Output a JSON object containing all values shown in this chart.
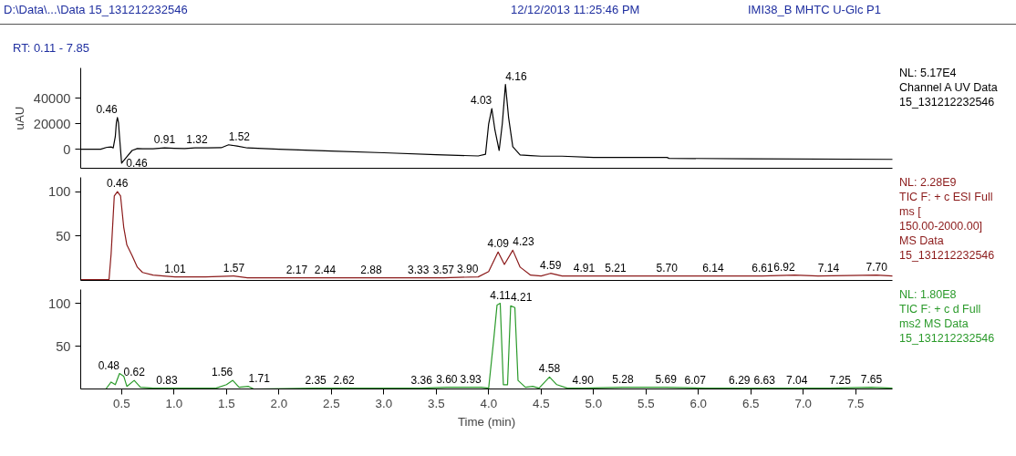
{
  "chart_data": [
    {
      "type": "line",
      "title": "D:\\Data\\...\\Data 15_131212232546",
      "subtitle": "RT: 0.11 - 7.85",
      "ylabel": "uAU",
      "tick_labels": "y",
      "grid": false,
      "xlim": [
        0.11,
        7.85
      ],
      "ylim": [
        -15000,
        64000
      ],
      "yticks": [
        0,
        20000,
        40000
      ],
      "series": [
        {
          "color": "#000000",
          "x": [
            0.11,
            0.3,
            0.36,
            0.4,
            0.42,
            0.44,
            0.45,
            0.46,
            0.47,
            0.48,
            0.5,
            0.55,
            0.6,
            0.65,
            0.7,
            0.8,
            0.91,
            1.0,
            1.1,
            1.2,
            1.32,
            1.45,
            1.52,
            1.6,
            1.7,
            2.0,
            2.5,
            3.0,
            3.5,
            3.9,
            3.97,
            4.0,
            4.03,
            4.06,
            4.1,
            4.13,
            4.16,
            4.19,
            4.23,
            4.3,
            4.4,
            4.5,
            4.7,
            5.0,
            5.7,
            5.72,
            6.5,
            7.85
          ],
          "values": [
            0,
            0,
            1500,
            1800,
            1000,
            10000,
            21000,
            25000,
            21000,
            10000,
            -11000,
            -6000,
            -1000,
            500,
            300,
            300,
            1000,
            700,
            500,
            1000,
            1000,
            1200,
            3500,
            2500,
            1000,
            0,
            -1500,
            -2800,
            -4300,
            -5300,
            -4000,
            20000,
            32000,
            15000,
            -1000,
            20000,
            51000,
            25000,
            2000,
            -4500,
            -5000,
            -5500,
            -5500,
            -6500,
            -6500,
            -7200,
            -7500,
            -8000
          ]
        }
      ],
      "annotations": [
        "12/12/2013 11:25:46 PM",
        "IMI38_B MHTC U-Glc P1",
        "NL: 5.17E4",
        "Channel A  UV Data",
        "15_131212232546",
        {
          "text": "0.46",
          "x": 0.46,
          "y": 25000
        },
        {
          "text": "0.46",
          "x": 0.5,
          "y": -11000
        },
        {
          "text": "0.91",
          "x": 0.91,
          "y": 1000
        },
        {
          "text": "1.32",
          "x": 1.32,
          "y": 1000
        },
        {
          "text": "1.52",
          "x": 1.52,
          "y": 3500
        },
        {
          "text": "4.03",
          "x": 4.03,
          "y": 32000
        },
        {
          "text": "4.16",
          "x": 4.16,
          "y": 51000
        }
      ]
    },
    {
      "type": "line",
      "tick_labels": "y",
      "grid": false,
      "xlim": [
        0.11,
        7.85
      ],
      "ylim": [
        0,
        116
      ],
      "yticks": [
        50,
        100
      ],
      "series": [
        {
          "color": "#8b1a1a",
          "x": [
            0.11,
            0.38,
            0.4,
            0.43,
            0.46,
            0.49,
            0.52,
            0.55,
            0.6,
            0.65,
            0.7,
            0.8,
            0.9,
            1.01,
            1.3,
            1.57,
            1.7,
            2.0,
            2.17,
            2.44,
            2.88,
            3.33,
            3.57,
            3.9,
            4.0,
            4.09,
            4.15,
            4.23,
            4.3,
            4.4,
            4.5,
            4.59,
            4.7,
            5.0,
            5.21,
            5.7,
            6.14,
            6.61,
            6.92,
            7.14,
            7.7,
            7.85
          ],
          "values": [
            1,
            1,
            30,
            95,
            100,
            95,
            60,
            40,
            28,
            15,
            9,
            6,
            5,
            4,
            4,
            5,
            3,
            3,
            3,
            3,
            3,
            3,
            3,
            4,
            10,
            32,
            18,
            34,
            15,
            6,
            5,
            8,
            5,
            5,
            5,
            5,
            5,
            5,
            6,
            5,
            6,
            5
          ]
        }
      ],
      "annotations": [
        "NL: 2.28E9",
        "TIC F: + c ESI Full",
        "ms [",
        "150.00-2000.00]",
        "MS Data",
        "15_131212232546",
        {
          "text": "0.46",
          "x": 0.46,
          "y": 100
        },
        {
          "text": "1.01",
          "x": 1.01,
          "y": 4
        },
        {
          "text": "1.57",
          "x": 1.57,
          "y": 5
        },
        {
          "text": "2.17",
          "x": 2.17,
          "y": 3
        },
        {
          "text": "2.44",
          "x": 2.44,
          "y": 3
        },
        {
          "text": "2.88",
          "x": 2.88,
          "y": 3
        },
        {
          "text": "3.33",
          "x": 3.33,
          "y": 3
        },
        {
          "text": "3.57",
          "x": 3.57,
          "y": 3
        },
        {
          "text": "3.90",
          "x": 3.9,
          "y": 4
        },
        {
          "text": "4.09",
          "x": 4.09,
          "y": 32
        },
        {
          "text": "4.23",
          "x": 4.23,
          "y": 34
        },
        {
          "text": "4.59",
          "x": 4.59,
          "y": 8
        },
        {
          "text": "4.91",
          "x": 4.91,
          "y": 5
        },
        {
          "text": "5.21",
          "x": 5.21,
          "y": 5
        },
        {
          "text": "5.70",
          "x": 5.7,
          "y": 5
        },
        {
          "text": "6.14",
          "x": 6.14,
          "y": 5
        },
        {
          "text": "6.61",
          "x": 6.61,
          "y": 5
        },
        {
          "text": "6.92",
          "x": 6.92,
          "y": 6
        },
        {
          "text": "7.14",
          "x": 7.14,
          "y": 5
        },
        {
          "text": "7.70",
          "x": 7.7,
          "y": 6
        }
      ]
    },
    {
      "type": "line",
      "xlabel": "Time (min)",
      "grid": false,
      "xlim": [
        0.11,
        7.85
      ],
      "ylim": [
        0,
        116
      ],
      "yticks": [
        50,
        100
      ],
      "xticks": [
        0.5,
        {
          "value": 1,
          "label": "1.0"
        },
        1.5,
        {
          "value": 2,
          "label": "2.0"
        },
        2.5,
        {
          "value": 3,
          "label": "3.0"
        },
        3.5,
        {
          "value": 4,
          "label": "4.0"
        },
        4.5,
        {
          "value": 5,
          "label": "5.0"
        },
        5.5,
        {
          "value": 6,
          "label": "6.0"
        },
        6.5,
        {
          "value": 7,
          "label": "7.0"
        },
        7.5
      ],
      "series": [
        {
          "color": "#2a9a2a",
          "x": [
            0.11,
            0.35,
            0.4,
            0.44,
            0.48,
            0.52,
            0.55,
            0.62,
            0.68,
            0.8,
            0.83,
            1.4,
            1.5,
            1.56,
            1.62,
            1.71,
            1.76,
            2.35,
            2.62,
            3.36,
            3.6,
            3.93,
            4.0,
            4.05,
            4.08,
            4.11,
            4.14,
            4.18,
            4.21,
            4.25,
            4.28,
            4.35,
            4.42,
            4.48,
            4.58,
            4.65,
            4.75,
            4.9,
            5.28,
            5.69,
            6.07,
            6.29,
            6.63,
            7.04,
            7.25,
            7.65,
            7.85
          ],
          "values": [
            0,
            0,
            8,
            5,
            18,
            15,
            3,
            10,
            2,
            1,
            1,
            1,
            5,
            10,
            2,
            3,
            0,
            1,
            1,
            1,
            2,
            2,
            1,
            60,
            98,
            100,
            5,
            5,
            97,
            95,
            10,
            2,
            3,
            1,
            14,
            5,
            1,
            1,
            2,
            2,
            1,
            1,
            1,
            1,
            1,
            2,
            1
          ]
        }
      ],
      "annotations": [
        "NL: 1.80E8",
        "TIC F: + c d Full",
        "ms2   MS Data",
        "15_131212232546",
        {
          "text": "0.48",
          "x": 0.48,
          "y": 18
        },
        {
          "text": "0.62",
          "x": 0.62,
          "y": 10
        },
        {
          "text": "0.83",
          "x": 0.83,
          "y": 1
        },
        {
          "text": "1.56",
          "x": 1.56,
          "y": 10
        },
        {
          "text": "1.71",
          "x": 1.71,
          "y": 3
        },
        {
          "text": "2.35",
          "x": 2.35,
          "y": 1
        },
        {
          "text": "2.62",
          "x": 2.62,
          "y": 1
        },
        {
          "text": "3.36",
          "x": 3.36,
          "y": 1
        },
        {
          "text": "3.60",
          "x": 3.6,
          "y": 2
        },
        {
          "text": "3.93",
          "x": 3.93,
          "y": 2
        },
        {
          "text": "4.11",
          "x": 4.11,
          "y": 100
        },
        {
          "text": "4.21",
          "x": 4.21,
          "y": 97
        },
        {
          "text": "4.58",
          "x": 4.58,
          "y": 14
        },
        {
          "text": "4.90",
          "x": 4.9,
          "y": 1
        },
        {
          "text": "5.28",
          "x": 5.28,
          "y": 2
        },
        {
          "text": "5.69",
          "x": 5.69,
          "y": 2
        },
        {
          "text": "6.07",
          "x": 6.07,
          "y": 1
        },
        {
          "text": "6.29",
          "x": 6.29,
          "y": 1
        },
        {
          "text": "6.63",
          "x": 6.63,
          "y": 1
        },
        {
          "text": "7.04",
          "x": 7.04,
          "y": 1
        },
        {
          "text": "7.25",
          "x": 7.25,
          "y": 1
        },
        {
          "text": "7.65",
          "x": 7.65,
          "y": 2
        }
      ]
    }
  ]
}
